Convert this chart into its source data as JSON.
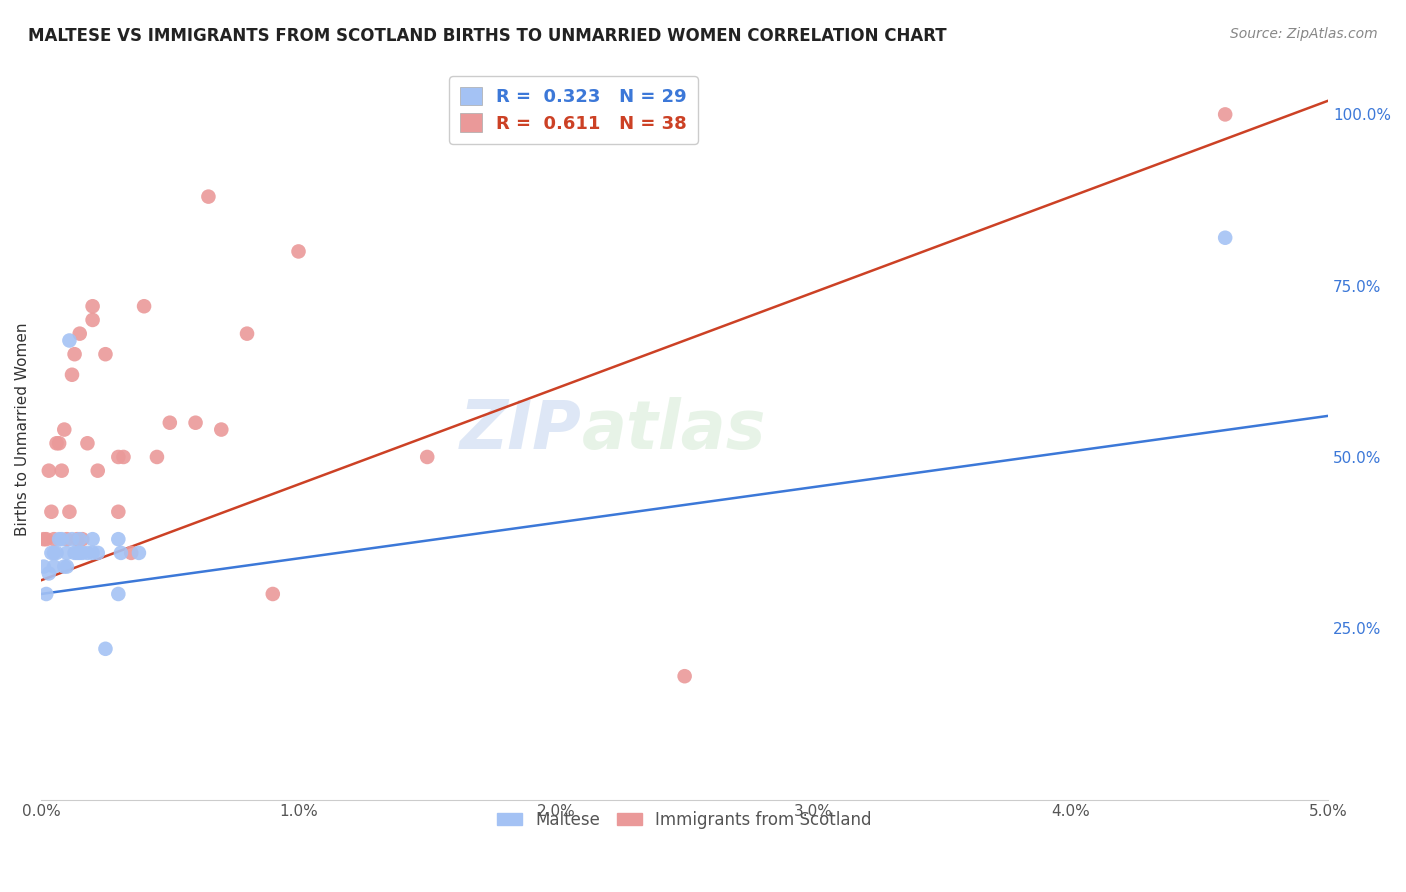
{
  "title": "MALTESE VS IMMIGRANTS FROM SCOTLAND BIRTHS TO UNMARRIED WOMEN CORRELATION CHART",
  "source": "Source: ZipAtlas.com",
  "ylabel": "Births to Unmarried Women",
  "xlim": [
    0.0,
    0.05
  ],
  "ylim": [
    0.0,
    1.08
  ],
  "xticks": [
    0.0,
    0.01,
    0.02,
    0.03,
    0.04,
    0.05
  ],
  "xtick_labels": [
    "0.0%",
    "1.0%",
    "2.0%",
    "3.0%",
    "4.0%",
    "5.0%"
  ],
  "yticks": [
    0.25,
    0.5,
    0.75,
    1.0
  ],
  "ytick_labels": [
    "25.0%",
    "50.0%",
    "75.0%",
    "100.0%"
  ],
  "watermark_zip": "ZIP",
  "watermark_atlas": "atlas",
  "blue_color": "#a4c2f4",
  "pink_color": "#ea9999",
  "blue_line_color": "#3c78d8",
  "pink_line_color": "#cc4125",
  "background_color": "#ffffff",
  "grid_color": "#dddddd",
  "maltese_x": [
    0.0001,
    0.0002,
    0.0003,
    0.0004,
    0.0005,
    0.0005,
    0.0006,
    0.0007,
    0.0008,
    0.0009,
    0.001,
    0.001,
    0.0011,
    0.0012,
    0.0013,
    0.0014,
    0.0015,
    0.0015,
    0.0016,
    0.0018,
    0.002,
    0.002,
    0.0022,
    0.0025,
    0.003,
    0.003,
    0.0031,
    0.0038,
    0.046
  ],
  "maltese_y": [
    0.34,
    0.3,
    0.33,
    0.36,
    0.36,
    0.34,
    0.36,
    0.38,
    0.38,
    0.34,
    0.36,
    0.34,
    0.67,
    0.38,
    0.36,
    0.36,
    0.36,
    0.38,
    0.36,
    0.36,
    0.38,
    0.36,
    0.36,
    0.22,
    0.3,
    0.38,
    0.36,
    0.36,
    0.82
  ],
  "scotland_x": [
    0.0001,
    0.0002,
    0.0003,
    0.0004,
    0.0005,
    0.0006,
    0.0007,
    0.0008,
    0.0009,
    0.001,
    0.0011,
    0.0012,
    0.0013,
    0.0014,
    0.0015,
    0.0016,
    0.0018,
    0.002,
    0.002,
    0.0022,
    0.0025,
    0.003,
    0.003,
    0.0032,
    0.0035,
    0.004,
    0.0045,
    0.005,
    0.006,
    0.0065,
    0.007,
    0.008,
    0.009,
    0.01,
    0.015,
    0.02,
    0.025,
    0.046
  ],
  "scotland_y": [
    0.38,
    0.38,
    0.48,
    0.42,
    0.38,
    0.52,
    0.52,
    0.48,
    0.54,
    0.38,
    0.42,
    0.62,
    0.65,
    0.38,
    0.68,
    0.38,
    0.52,
    0.7,
    0.72,
    0.48,
    0.65,
    0.5,
    0.42,
    0.5,
    0.36,
    0.72,
    0.5,
    0.55,
    0.55,
    0.88,
    0.54,
    0.68,
    0.3,
    0.8,
    0.5,
    0.97,
    0.18,
    1.0
  ],
  "pink_line_x0": 0.0,
  "pink_line_y0": 0.32,
  "pink_line_x1": 0.05,
  "pink_line_y1": 1.02,
  "blue_line_x0": 0.0,
  "blue_line_y0": 0.3,
  "blue_line_x1": 0.05,
  "blue_line_y1": 0.56
}
